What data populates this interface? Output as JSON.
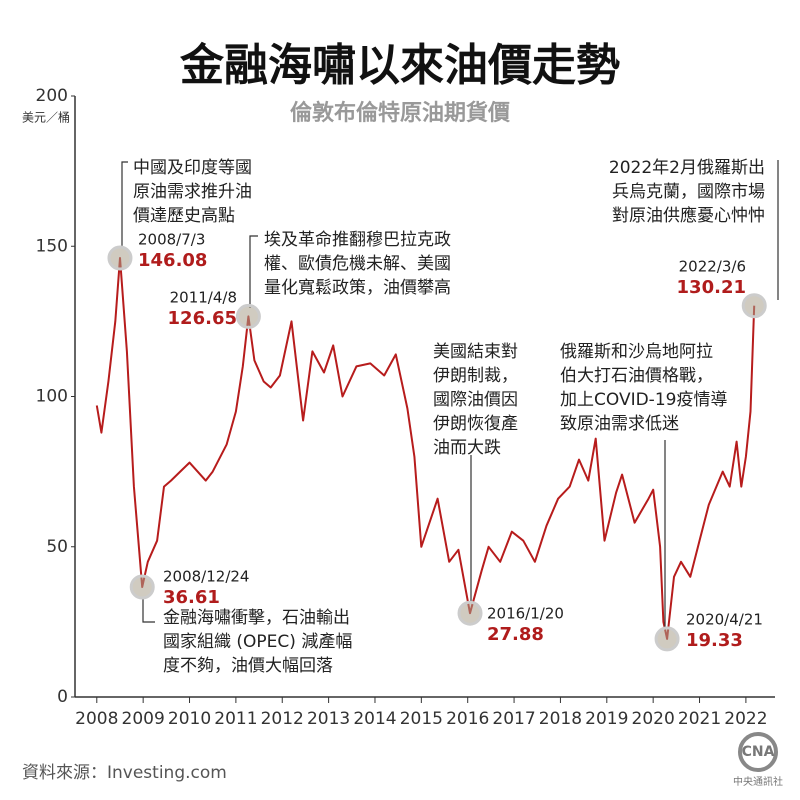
{
  "chart_data": {
    "type": "line",
    "title": "金融海嘯以來油價走勢",
    "subtitle": "倫敦布倫特原油期貨價",
    "y_label": "美元／桶",
    "source": "資料來源：Investing.com",
    "logo": "CNA",
    "logo_text": "中央通訊社",
    "xlim": [
      2007.53,
      2022.52
    ],
    "xticks": [
      2008,
      2009,
      2010,
      2011,
      2012,
      2013,
      2014,
      2015,
      2016,
      2017,
      2018,
      2019,
      2020,
      2021,
      2022
    ],
    "ylim": [
      0,
      200
    ],
    "yticks": [
      0,
      50,
      100,
      150,
      200
    ],
    "grid": false,
    "series": [
      {
        "name": "Brent",
        "color": "#b71c1c",
        "x": [
          2008.0,
          2008.1,
          2008.25,
          2008.4,
          2008.5,
          2008.65,
          2008.8,
          2008.98,
          2009.1,
          2009.3,
          2009.45,
          2009.6,
          2009.8,
          2010.0,
          2010.35,
          2010.5,
          2010.8,
          2011.0,
          2011.15,
          2011.27,
          2011.4,
          2011.6,
          2011.75,
          2011.95,
          2012.2,
          2012.45,
          2012.65,
          2012.9,
          2013.1,
          2013.3,
          2013.6,
          2013.9,
          2014.2,
          2014.45,
          2014.7,
          2014.85,
          2015.0,
          2015.35,
          2015.6,
          2015.8,
          2016.05,
          2016.3,
          2016.45,
          2016.7,
          2016.95,
          2017.2,
          2017.45,
          2017.7,
          2017.95,
          2018.2,
          2018.4,
          2018.6,
          2018.76,
          2018.95,
          2019.2,
          2019.33,
          2019.6,
          2019.9,
          2020.0,
          2020.15,
          2020.22,
          2020.3,
          2020.45,
          2020.6,
          2020.8,
          2021.0,
          2021.2,
          2021.5,
          2021.65,
          2021.8,
          2021.9,
          2022.0,
          2022.1,
          2022.18
        ],
        "values": [
          97,
          88,
          105,
          125,
          146.08,
          115,
          70,
          36.61,
          45,
          52,
          70,
          72,
          75,
          78,
          72,
          75,
          84,
          95,
          110,
          126.65,
          112,
          105,
          103,
          107,
          125,
          92,
          115,
          108,
          117,
          100,
          110,
          111,
          107,
          114,
          96,
          80,
          50,
          66,
          45,
          49,
          27.88,
          42,
          50,
          45,
          55,
          52,
          45,
          57,
          66,
          70,
          79,
          72,
          86,
          52,
          68,
          74,
          58,
          66,
          69,
          50,
          25,
          19.33,
          40,
          45,
          40,
          52,
          64,
          75,
          70,
          85,
          70,
          80,
          95,
          130.21
        ]
      }
    ],
    "annotations": [
      {
        "date": "2008/7/3",
        "value": 146.08,
        "x": 2008.5,
        "text": [
          "中國及印度等國",
          "原油需求推升油",
          "價達歷史高點"
        ]
      },
      {
        "date": "2008/12/24",
        "value": 36.61,
        "x": 2008.98,
        "text": [
          "金融海嘯衝擊，石油輸出",
          "國家組織 (OPEC) 減產幅",
          "度不夠，油價大幅回落"
        ]
      },
      {
        "date": "2011/4/8",
        "value": 126.65,
        "x": 2011.27,
        "text": [
          "埃及革命推翻穆巴拉克政",
          "權、歐債危機未解、美國",
          "量化寬鬆政策，油價攀高"
        ]
      },
      {
        "date": "2016/1/20",
        "value": 27.88,
        "x": 2016.05,
        "text": [
          "美國結束對",
          "伊朗制裁，",
          "國際油價因",
          "伊朗恢復產",
          "油而大跌"
        ]
      },
      {
        "date": "2020/4/21",
        "value": 19.33,
        "x": 2020.3,
        "text": [
          "俄羅斯和沙烏地阿拉",
          "伯大打石油價格戰，",
          "加上COVID-19疫情導",
          "致原油需求低迷"
        ]
      },
      {
        "date": "2022/3/6",
        "value": 130.21,
        "x": 2022.18,
        "text": [
          "2022年2月俄羅斯出",
          "兵烏克蘭，國際市場",
          "對原油供應憂心忡忡"
        ]
      }
    ]
  }
}
